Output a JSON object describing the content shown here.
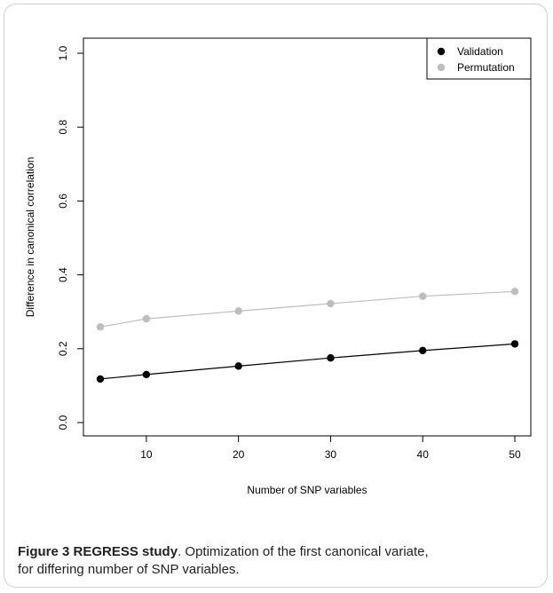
{
  "chart_data": {
    "type": "line",
    "xlabel": "Number of SNP variables",
    "ylabel": "Difference in canonical correlation",
    "xlim": [
      5,
      50
    ],
    "ylim": [
      0.0,
      1.0
    ],
    "x_ticks": [
      "10",
      "20",
      "30",
      "40",
      "50"
    ],
    "y_ticks": [
      "0.0",
      "0.2",
      "0.4",
      "0.6",
      "0.8",
      "1.0"
    ],
    "x": [
      5,
      10,
      20,
      30,
      40,
      50
    ],
    "series": [
      {
        "name": "Validation",
        "color": "#000000",
        "values": [
          0.118,
          0.13,
          0.153,
          0.175,
          0.195,
          0.213
        ]
      },
      {
        "name": "Permutation",
        "color": "#bdbdbd",
        "values": [
          0.259,
          0.281,
          0.302,
          0.322,
          0.342,
          0.355
        ]
      }
    ],
    "legend_position": "top-right",
    "grid": false
  },
  "caption": {
    "label": "Figure 3",
    "study": "REGRESS study",
    "text_line1": ". Optimization of the first canonical variate,",
    "text_line2": "for differing number of SNP variables."
  }
}
